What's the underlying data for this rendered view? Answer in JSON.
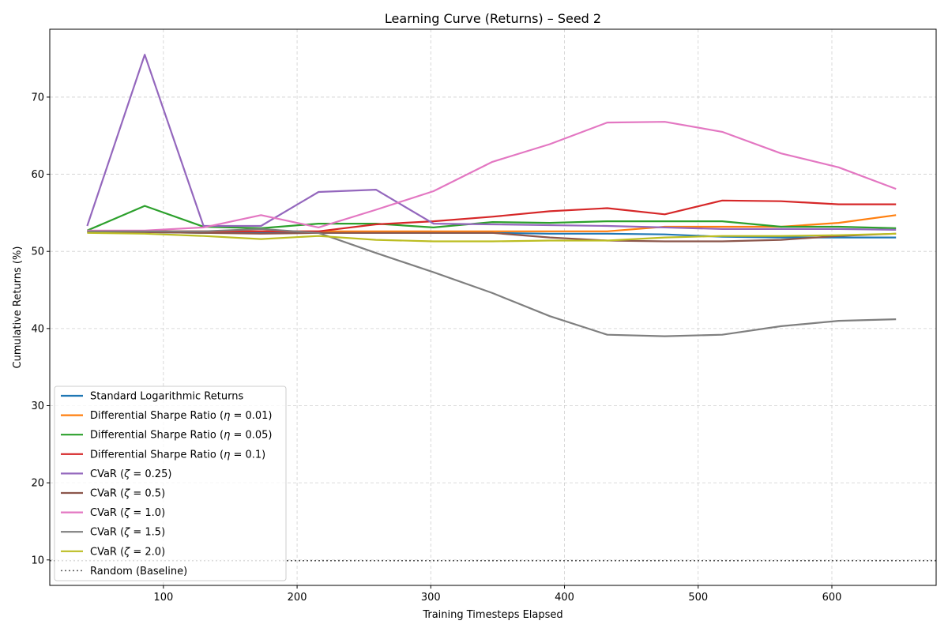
{
  "chart_data": {
    "type": "line",
    "title": "Learning Curve (Returns) – Seed 2",
    "xlabel": "Training Timesteps Elapsed",
    "ylabel": "Cumulative Returns (%)",
    "xlim": [
      15,
      678
    ],
    "ylim": [
      6.7,
      78.8
    ],
    "xticks": [
      100,
      200,
      300,
      400,
      500,
      600
    ],
    "yticks": [
      10,
      20,
      30,
      40,
      50,
      60,
      70
    ],
    "grid": true,
    "legend_position": "lower-left",
    "x": [
      43,
      86,
      130,
      173,
      216,
      259,
      302,
      346,
      389,
      432,
      475,
      518,
      562,
      605,
      648
    ],
    "series": [
      {
        "name": "Standard Logarithmic Returns",
        "color": "#1f77b4",
        "style": "solid",
        "values": [
          52.5,
          52.5,
          52.4,
          52.4,
          52.4,
          52.4,
          52.4,
          52.4,
          52.3,
          52.3,
          52.2,
          51.9,
          51.8,
          51.8,
          51.8
        ]
      },
      {
        "name": "Differential Sharpe Ratio (η = 0.01)",
        "color": "#ff7f0e",
        "style": "solid",
        "values": [
          52.6,
          52.6,
          52.6,
          52.6,
          52.6,
          52.6,
          52.6,
          52.6,
          52.6,
          52.6,
          53.2,
          53.2,
          53.2,
          53.7,
          54.7
        ]
      },
      {
        "name": "Differential Sharpe Ratio (η = 0.05)",
        "color": "#2ca02c",
        "style": "solid",
        "values": [
          52.7,
          55.9,
          53.2,
          53.0,
          53.6,
          53.6,
          53.1,
          53.8,
          53.7,
          53.9,
          53.9,
          53.9,
          53.2,
          53.2,
          53.0
        ]
      },
      {
        "name": "Differential Sharpe Ratio (η = 0.1)",
        "color": "#d62728",
        "style": "solid",
        "values": [
          52.6,
          52.6,
          52.6,
          52.6,
          52.6,
          53.5,
          53.9,
          54.5,
          55.2,
          55.6,
          54.8,
          56.6,
          56.5,
          56.1,
          56.1
        ]
      },
      {
        "name": "CVaR (ζ = 0.25)",
        "color": "#9467bd",
        "style": "solid",
        "values": [
          53.3,
          75.5,
          53.3,
          53.3,
          57.7,
          58.0,
          53.6,
          53.5,
          53.4,
          53.3,
          53.1,
          52.9,
          52.9,
          52.9,
          52.8
        ]
      },
      {
        "name": "CVaR (ζ = 0.5)",
        "color": "#8c564b",
        "style": "solid",
        "values": [
          52.5,
          52.5,
          52.4,
          52.3,
          52.4,
          52.4,
          52.4,
          52.4,
          51.8,
          51.4,
          51.3,
          51.3,
          51.5,
          52.0,
          52.3
        ]
      },
      {
        "name": "CVaR (ζ = 1.0)",
        "color": "#e377c2",
        "style": "solid",
        "values": [
          52.7,
          52.7,
          53.1,
          54.7,
          53.1,
          55.4,
          57.8,
          61.6,
          63.9,
          66.7,
          66.8,
          65.5,
          62.7,
          60.9,
          58.1
        ]
      },
      {
        "name": "CVaR (ζ = 1.5)",
        "color": "#7f7f7f",
        "style": "solid",
        "values": [
          52.6,
          52.6,
          52.6,
          52.9,
          52.4,
          49.8,
          47.3,
          44.6,
          41.6,
          39.2,
          39.0,
          39.2,
          40.3,
          41.0,
          41.2
        ]
      },
      {
        "name": "CVaR (ζ = 2.0)",
        "color": "#bcbd22",
        "style": "solid",
        "values": [
          52.4,
          52.3,
          52.0,
          51.6,
          52.0,
          51.5,
          51.3,
          51.3,
          51.4,
          51.4,
          51.8,
          52.0,
          52.0,
          52.1,
          52.3
        ]
      },
      {
        "name": "Random (Baseline)",
        "color": "#555555",
        "style": "dotted",
        "values": [
          9.9,
          9.9,
          9.9,
          9.9,
          9.9,
          9.9,
          9.9,
          9.9,
          9.9,
          9.9,
          9.9,
          9.9,
          9.9,
          9.9,
          9.9
        ]
      }
    ],
    "legend_display": [
      {
        "parts": [
          [
            "Standard Logarithmic Returns",
            false
          ]
        ]
      },
      {
        "parts": [
          [
            "Differential Sharpe Ratio (",
            false
          ],
          [
            "η",
            true
          ],
          [
            " = 0.01)",
            false
          ]
        ]
      },
      {
        "parts": [
          [
            "Differential Sharpe Ratio (",
            false
          ],
          [
            "η",
            true
          ],
          [
            " = 0.05)",
            false
          ]
        ]
      },
      {
        "parts": [
          [
            "Differential Sharpe Ratio (",
            false
          ],
          [
            "η",
            true
          ],
          [
            " = 0.1)",
            false
          ]
        ]
      },
      {
        "parts": [
          [
            "CVaR (",
            false
          ],
          [
            "ζ",
            true
          ],
          [
            " = 0.25)",
            false
          ]
        ]
      },
      {
        "parts": [
          [
            "CVaR (",
            false
          ],
          [
            "ζ",
            true
          ],
          [
            " = 0.5)",
            false
          ]
        ]
      },
      {
        "parts": [
          [
            "CVaR (",
            false
          ],
          [
            "ζ",
            true
          ],
          [
            " = 1.0)",
            false
          ]
        ]
      },
      {
        "parts": [
          [
            "CVaR (",
            false
          ],
          [
            "ζ",
            true
          ],
          [
            " = 1.5)",
            false
          ]
        ]
      },
      {
        "parts": [
          [
            "CVaR (",
            false
          ],
          [
            "ζ",
            true
          ],
          [
            " = 2.0)",
            false
          ]
        ]
      },
      {
        "parts": [
          [
            "Random (Baseline)",
            false
          ]
        ]
      }
    ]
  }
}
